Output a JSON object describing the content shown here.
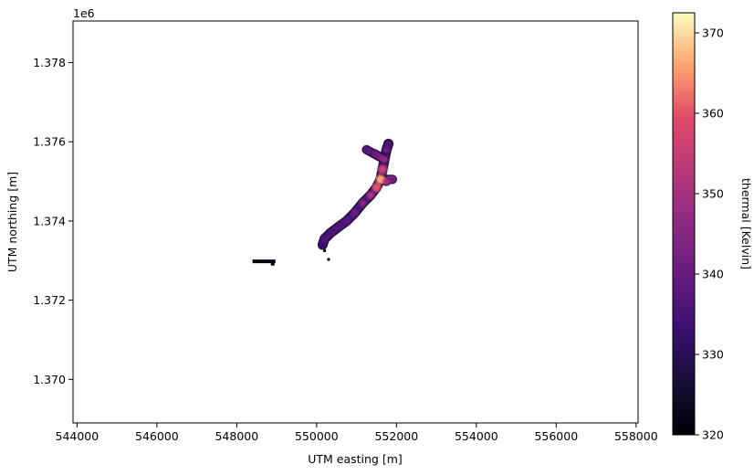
{
  "chart_data": {
    "type": "heatmap",
    "title": "",
    "xlabel": "UTM easting [m]",
    "ylabel": "UTM northing [m]",
    "xlim": [
      543900,
      558050
    ],
    "ylim": [
      1368900,
      1379050
    ],
    "x_ticks": [
      544000,
      546000,
      548000,
      550000,
      552000,
      554000,
      556000,
      558000
    ],
    "x_tick_labels": [
      "544000",
      "546000",
      "548000",
      "550000",
      "552000",
      "554000",
      "556000",
      "558000"
    ],
    "y_ticks": [
      1370000,
      1372000,
      1374000,
      1376000,
      1378000
    ],
    "y_tick_labels": [
      "1.370",
      "1.372",
      "1.374",
      "1.376",
      "1.378"
    ],
    "y_offset_text": "1e6",
    "colorbar": {
      "label": "thermal [Kelvin]",
      "colormap": "magma",
      "vmin": 320,
      "vmax": 372.5,
      "ticks": [
        320,
        330,
        340,
        350,
        360,
        370
      ],
      "tick_labels": [
        "320",
        "330",
        "340",
        "350",
        "360",
        "370"
      ]
    },
    "grid": false,
    "thermal_anomaly": {
      "main_body": [
        [
          550150,
          1373400,
          333
        ],
        [
          550200,
          1373550,
          336
        ],
        [
          550350,
          1373700,
          335
        ],
        [
          550550,
          1373850,
          336
        ],
        [
          550750,
          1374000,
          338
        ],
        [
          550950,
          1374200,
          341
        ],
        [
          551150,
          1374450,
          345
        ],
        [
          551350,
          1374650,
          352
        ],
        [
          551500,
          1374850,
          360
        ],
        [
          551600,
          1375050,
          366
        ],
        [
          551650,
          1375300,
          356
        ],
        [
          551700,
          1375550,
          346
        ],
        [
          551750,
          1375800,
          340
        ],
        [
          551800,
          1375950,
          335
        ],
        [
          551250,
          1375800,
          336
        ],
        [
          551450,
          1375700,
          340
        ],
        [
          551900,
          1375050,
          340
        ],
        [
          551750,
          1375000,
          348
        ]
      ],
      "west_patch": [
        [
          548600,
          1372980,
          321
        ],
        [
          548900,
          1372920,
          321
        ]
      ],
      "small_patch": [
        [
          550300,
          1373030,
          321
        ],
        [
          550200,
          1373250,
          323
        ]
      ]
    }
  }
}
